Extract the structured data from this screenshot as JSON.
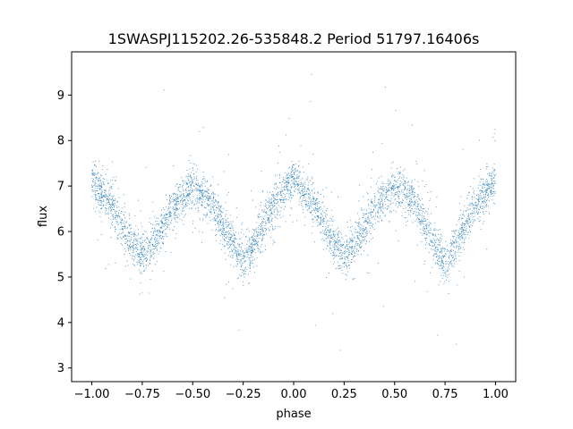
{
  "chart_data": {
    "type": "scatter",
    "title": "1SWASPJ115202.26-535848.2 Period 51797.16406s",
    "xlabel": "phase",
    "ylabel": "flux",
    "xlim": [
      -1.1,
      1.1
    ],
    "ylim": [
      2.7,
      9.95
    ],
    "xticks": [
      -1.0,
      -0.75,
      -0.5,
      -0.25,
      0.0,
      0.25,
      0.5,
      0.75,
      1.0
    ],
    "xtick_labels": [
      "−1.00",
      "−0.75",
      "−0.50",
      "−0.25",
      "0.00",
      "0.25",
      "0.50",
      "0.75",
      "1.00"
    ],
    "yticks": [
      3,
      4,
      5,
      6,
      7,
      8,
      9
    ],
    "ytick_labels": [
      "3",
      "4",
      "5",
      "6",
      "7",
      "8",
      "9"
    ],
    "grid": false,
    "legend": "none",
    "point_color": "#1f77b4",
    "series": [
      {
        "x": [
          -1.0,
          -0.9,
          -0.8,
          -0.75,
          -0.7,
          -0.6,
          -0.5,
          -0.4,
          -0.3,
          -0.25,
          -0.2,
          -0.1,
          0.0,
          0.1,
          0.2,
          0.25,
          0.3,
          0.4,
          0.5,
          0.6,
          0.7,
          0.75,
          0.8,
          0.9,
          1.0
        ],
        "y": [
          7.1,
          6.6,
          5.7,
          5.5,
          5.7,
          6.5,
          7.0,
          6.6,
          5.7,
          5.3,
          5.7,
          6.6,
          7.15,
          6.6,
          5.7,
          5.5,
          5.7,
          6.5,
          7.0,
          6.6,
          5.7,
          5.3,
          5.7,
          6.6,
          7.15
        ]
      }
    ]
  }
}
